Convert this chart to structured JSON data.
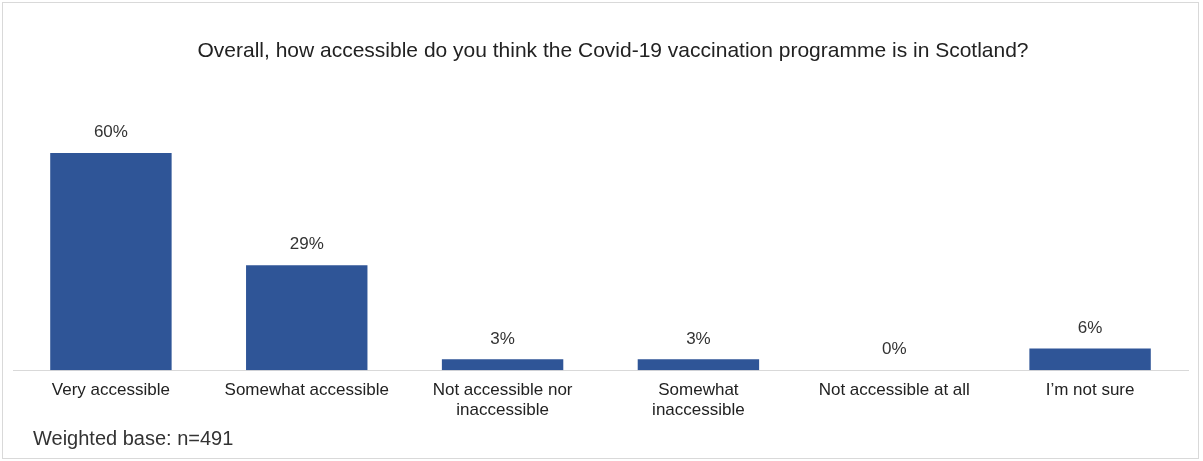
{
  "chart_data": {
    "type": "bar",
    "title": "Overall, how accessible do you think the Covid-19 vaccination programme is in Scotland?",
    "categories": [
      "Very accessible",
      "Somewhat accessible",
      "Not accessible nor inaccessible",
      "Somewhat inaccessible",
      "Not accessible at all",
      "I’m not sure"
    ],
    "values": [
      60,
      29,
      3,
      3,
      0,
      6
    ],
    "value_labels": [
      "60%",
      "29%",
      "3%",
      "3%",
      "0%",
      "6%"
    ],
    "color": "#2f5597",
    "annotations": [
      "Weighted base: n=491"
    ],
    "grid": false,
    "legend": false
  }
}
